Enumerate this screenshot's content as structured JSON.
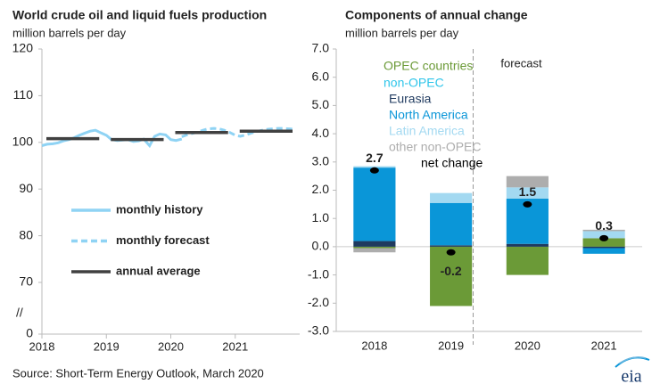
{
  "chart_data": [
    {
      "type": "line",
      "title": "World crude oil and liquid fuels production",
      "subtitle": "million barrels per day",
      "xlim": [
        2018,
        2022
      ],
      "xticks": [
        2018,
        2019,
        2020,
        2021
      ],
      "ylim": [
        0,
        120
      ],
      "yticks": [
        0,
        70,
        80,
        90,
        100,
        110,
        120
      ],
      "axis_break": true,
      "annotation": "//",
      "series": [
        {
          "name": "monthly history",
          "color": "#8fd3f4",
          "dash": false,
          "x": [
            2018,
            2018.08,
            2018.17,
            2018.25,
            2018.33,
            2018.42,
            2018.5,
            2018.58,
            2018.67,
            2018.75,
            2018.83,
            2018.92,
            2019,
            2019.08,
            2019.17,
            2019.25,
            2019.33,
            2019.42,
            2019.5,
            2019.58,
            2019.67,
            2019.75,
            2019.83,
            2019.92,
            2020,
            2020.08,
            2020.17
          ],
          "values": [
            99.3,
            99.6,
            99.7,
            99.9,
            100.3,
            100.6,
            101.0,
            101.5,
            102.0,
            102.4,
            102.6,
            102.0,
            101.5,
            100.6,
            100.4,
            100.5,
            100.6,
            100.2,
            100.3,
            100.7,
            99.3,
            101.3,
            101.8,
            101.6,
            100.6,
            100.4,
            100.7
          ]
        },
        {
          "name": "monthly forecast",
          "color": "#8fd3f4",
          "dash": true,
          "x": [
            2020.17,
            2020.25,
            2020.33,
            2020.42,
            2020.5,
            2020.58,
            2020.67,
            2020.75,
            2020.83,
            2020.92,
            2021,
            2021.08,
            2021.17,
            2021.25,
            2021.33,
            2021.42,
            2021.5,
            2021.58,
            2021.67,
            2021.75,
            2021.83,
            2021.92
          ],
          "values": [
            101.2,
            101.6,
            101.9,
            102.2,
            102.6,
            102.9,
            103.0,
            102.9,
            102.6,
            102.1,
            101.5,
            101.3,
            101.6,
            102.0,
            102.3,
            102.6,
            102.8,
            102.9,
            103.0,
            103.0,
            102.9,
            102.8
          ]
        },
        {
          "name": "annual average",
          "color": "#404040",
          "dash": false,
          "segments": true,
          "x": [
            2018,
            2019,
            2020,
            2021
          ],
          "values": [
            100.8,
            100.6,
            102.1,
            102.4
          ]
        }
      ]
    },
    {
      "type": "bar",
      "stacked": true,
      "title": "Components of annual change",
      "subtitle": "million barrels per day",
      "categories": [
        "2018",
        "2019",
        "2020",
        "2021"
      ],
      "ylim": [
        -3,
        7
      ],
      "yticks": [
        {
          "value": -3,
          "label": "-3.0"
        },
        {
          "value": -2,
          "label": "-2.0"
        },
        {
          "value": -1,
          "label": "-1.0"
        },
        {
          "value": 0,
          "label": "0.0"
        },
        {
          "value": 1,
          "label": "1.0"
        },
        {
          "value": 2,
          "label": "2.0"
        },
        {
          "value": 3,
          "label": "3.0"
        },
        {
          "value": 4,
          "label": "4.0"
        },
        {
          "value": 5,
          "label": "5.0"
        },
        {
          "value": 6,
          "label": "6.0"
        },
        {
          "value": 7,
          "label": "7.0"
        }
      ],
      "forecast_label": "forecast",
      "group_label": "non-OPEC",
      "group_color": "#2ec5ea",
      "series": [
        {
          "name": "OPEC countries",
          "color": "#6b9a37",
          "values": [
            -0.05,
            -2.1,
            -1.0,
            0.3
          ]
        },
        {
          "name": "Eurasia",
          "color": "#1f3a5f",
          "values": [
            0.2,
            0.05,
            0.1,
            -0.05
          ]
        },
        {
          "name": "North America",
          "color": "#0a96d8",
          "values": [
            2.6,
            1.5,
            1.6,
            -0.2
          ]
        },
        {
          "name": "Latin America",
          "color": "#a3d9f1",
          "values": [
            0.05,
            0.35,
            0.4,
            0.25
          ]
        },
        {
          "name": "other non-OPEC",
          "color": "#adadad",
          "values": [
            -0.15,
            0,
            0.4,
            0.05
          ]
        }
      ],
      "net": {
        "name": "net change",
        "color": "#000000",
        "values": [
          2.7,
          -0.2,
          1.5,
          0.3
        ]
      }
    }
  ],
  "source": "Source: Short-Term Energy Outlook, March 2020",
  "logo": "eia"
}
